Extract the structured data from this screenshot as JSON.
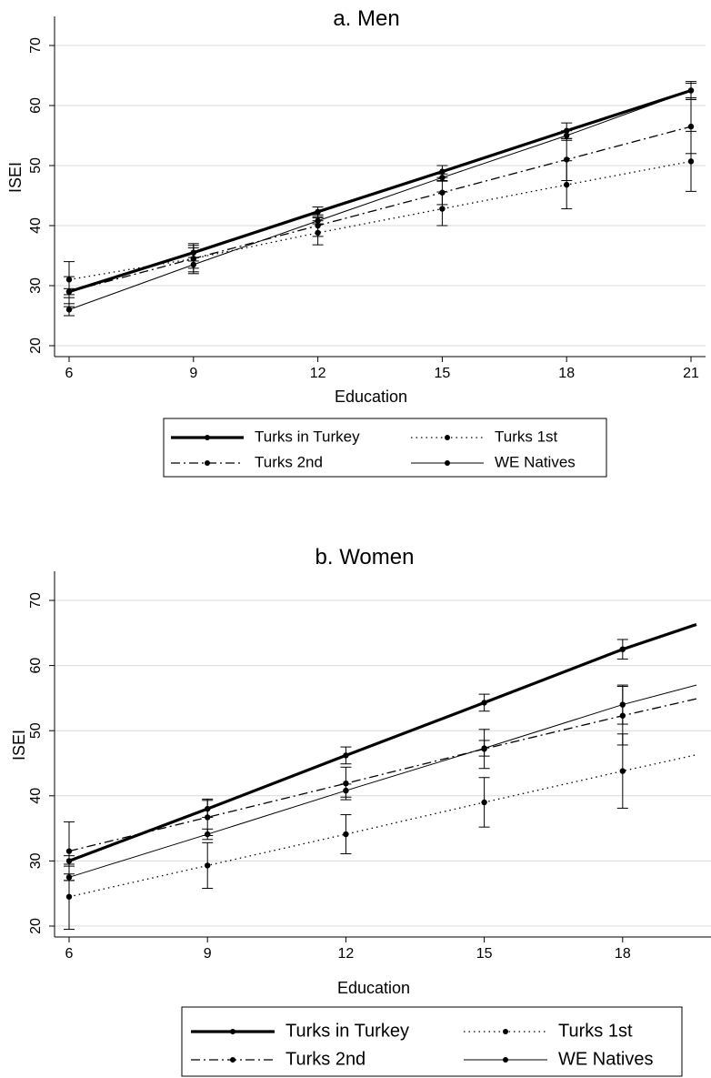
{
  "chart_data": [
    {
      "type": "line",
      "title": "a. Men",
      "xlabel": "Education",
      "ylabel": "ISEI",
      "xlim": [
        6,
        21
      ],
      "ylim": [
        20,
        70
      ],
      "x_ticks": [
        "6",
        "9",
        "12",
        "15",
        "18",
        "21"
      ],
      "y_ticks": [
        "20",
        "30",
        "40",
        "50",
        "60",
        "70"
      ],
      "grid": true,
      "legend_position": "bottom",
      "x": [
        6,
        9,
        12,
        15,
        18,
        21
      ],
      "series": [
        {
          "name": "Turks in Turkey",
          "style": "thick-solid",
          "values": [
            29,
            35.5,
            42.3,
            49,
            55.8,
            62.5
          ],
          "err": [
            0.5,
            0.8,
            0.8,
            1.0,
            1.3,
            1.5
          ]
        },
        {
          "name": "Turks 1st",
          "style": "dotted",
          "values": [
            31,
            34.5,
            38.8,
            42.8,
            46.8,
            50.7
          ],
          "err": [
            3.0,
            2.5,
            2.0,
            2.8,
            4.0,
            5.0
          ]
        },
        {
          "name": "Turks 2nd",
          "style": "dash-dot",
          "values": [
            29,
            34.5,
            40,
            45.5,
            51,
            56.5
          ],
          "err": [
            2.5,
            2.2,
            1.8,
            2.0,
            3.5,
            4.5
          ]
        },
        {
          "name": "WE Natives",
          "style": "thin-solid",
          "values": [
            26,
            33.5,
            40.8,
            48,
            55,
            62.5
          ],
          "err": [
            1.0,
            0.6,
            0.5,
            0.6,
            0.8,
            1.2
          ]
        }
      ]
    },
    {
      "type": "line",
      "title": "b. Women",
      "xlabel": "Education",
      "ylabel": "ISEI",
      "xlim": [
        6,
        19.6
      ],
      "ylim": [
        20,
        70
      ],
      "x_ticks": [
        "6",
        "9",
        "12",
        "15",
        "18"
      ],
      "y_ticks": [
        "20",
        "30",
        "40",
        "50",
        "60",
        "70"
      ],
      "grid": true,
      "legend_position": "bottom",
      "x": [
        6,
        9,
        12,
        15,
        18,
        19.6
      ],
      "series": [
        {
          "name": "Turks in Turkey",
          "style": "thick-solid",
          "values": [
            30,
            38,
            46.2,
            54.3,
            62.5,
            66.3
          ],
          "err": [
            0.8,
            1.3,
            1.3,
            1.3,
            1.5,
            null
          ]
        },
        {
          "name": "Turks 1st",
          "style": "dotted",
          "values": [
            24.5,
            29.3,
            34.1,
            39,
            43.8,
            46.3
          ],
          "err": [
            5.0,
            3.5,
            3.0,
            3.8,
            5.7,
            null
          ]
        },
        {
          "name": "Turks 2nd",
          "style": "dash-dot",
          "values": [
            31.5,
            36.7,
            41.9,
            47.2,
            52.3,
            54.9
          ],
          "err": [
            4.5,
            2.8,
            2.5,
            3.0,
            4.5,
            null
          ]
        },
        {
          "name": "WE Natives",
          "style": "thin-solid",
          "values": [
            27.5,
            34.1,
            40.8,
            47.3,
            54,
            57
          ],
          "err": [
            0.5,
            0.8,
            1.0,
            1.2,
            3.0,
            null
          ]
        }
      ]
    }
  ]
}
